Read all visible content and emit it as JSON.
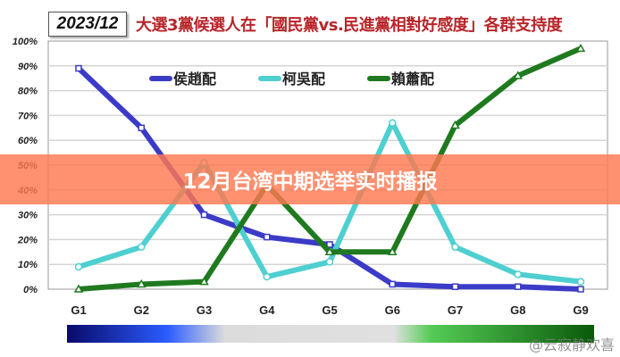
{
  "header": {
    "date_label": "2023/12",
    "title": "大選3黨候選人在「國民黨vs.民進黨相對好感度」各群支持度"
  },
  "banner": {
    "text": "12月台湾中期选举实时播报"
  },
  "watermark": {
    "text": "@云寂静欢喜"
  },
  "chart_data": {
    "type": "line",
    "categories": [
      "G1",
      "G2",
      "G3",
      "G4",
      "G5",
      "G6",
      "G7",
      "G8",
      "G9"
    ],
    "y_ticks": [
      "0%",
      "10%",
      "20%",
      "30%",
      "40%",
      "50%",
      "60%",
      "70%",
      "80%",
      "90%",
      "100%"
    ],
    "ylim": [
      0,
      100
    ],
    "grid": true,
    "legend_placement": "top",
    "series": [
      {
        "name": "侯趙配",
        "color": "#3b3bc8",
        "marker": "square",
        "values": [
          89,
          65,
          30,
          21,
          18,
          2,
          1,
          1,
          0
        ]
      },
      {
        "name": "柯吳配",
        "color": "#4ecfd0",
        "marker": "circle",
        "values": [
          9,
          17,
          51,
          5,
          11,
          67,
          17,
          6,
          3
        ]
      },
      {
        "name": "賴蕭配",
        "color": "#1f7a1f",
        "marker": "triangle",
        "values": [
          0,
          2,
          3,
          42,
          15,
          15,
          66,
          86,
          97
        ]
      }
    ]
  }
}
